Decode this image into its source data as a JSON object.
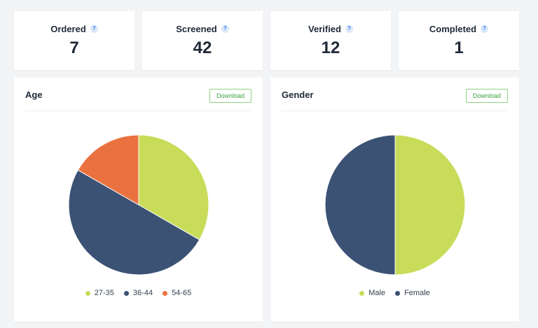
{
  "stats": [
    {
      "label": "Ordered",
      "value": "7"
    },
    {
      "label": "Screened",
      "value": "42"
    },
    {
      "label": "Verified",
      "value": "12"
    },
    {
      "label": "Completed",
      "value": "1"
    }
  ],
  "help_glyph": "?",
  "colors": {
    "lime": "#c8dc5a",
    "navy": "#3b5274",
    "orange": "#ea7240",
    "accent_green": "#3da33f"
  },
  "panels": {
    "age": {
      "title": "Age",
      "download_label": "Download"
    },
    "gender": {
      "title": "Gender",
      "download_label": "Download"
    }
  },
  "chart_data": [
    {
      "type": "pie",
      "title": "Age",
      "categories": [
        "27-35",
        "36-44",
        "54-65"
      ],
      "values": [
        33.3,
        50.0,
        16.7
      ],
      "colors": [
        "#c8dc5a",
        "#3b5274",
        "#ea7240"
      ],
      "legend": "bottom"
    },
    {
      "type": "pie",
      "title": "Gender",
      "categories": [
        "Male",
        "Female"
      ],
      "values": [
        50,
        50
      ],
      "colors": [
        "#c8dc5a",
        "#3b5274"
      ],
      "legend": "bottom"
    }
  ]
}
